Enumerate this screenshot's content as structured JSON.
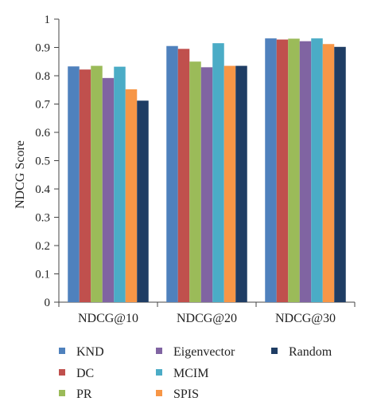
{
  "chart_data": {
    "type": "bar",
    "title": "",
    "xlabel": "",
    "ylabel": "NDCG Score",
    "ylim": [
      0,
      1
    ],
    "yticks": [
      0,
      0.1,
      0.2,
      0.3,
      0.4,
      0.5,
      0.6,
      0.7,
      0.8,
      0.9,
      1
    ],
    "ytick_labels": [
      "0",
      "0.1",
      "0.2",
      "0.3",
      "0.4",
      "0.5",
      "0.6",
      "0.7",
      "0.8",
      "0.9",
      "1"
    ],
    "grid": false,
    "legend_position": "bottom",
    "categories": [
      "NDCG@10",
      "NDCG@20",
      "NDCG@30"
    ],
    "series": [
      {
        "name": "KND",
        "color": "#4f81bd",
        "values": [
          0.833,
          0.905,
          0.932
        ]
      },
      {
        "name": "DC",
        "color": "#c0504d",
        "values": [
          0.822,
          0.895,
          0.928
        ]
      },
      {
        "name": "PR",
        "color": "#9bbb59",
        "values": [
          0.835,
          0.85,
          0.931
        ]
      },
      {
        "name": "Eigenvector",
        "color": "#8064a2",
        "values": [
          0.792,
          0.83,
          0.922
        ]
      },
      {
        "name": "MCIM",
        "color": "#4bacc6",
        "values": [
          0.832,
          0.915,
          0.932
        ]
      },
      {
        "name": "SPIS",
        "color": "#f79646",
        "values": [
          0.752,
          0.835,
          0.912
        ]
      },
      {
        "name": "Random",
        "color": "#1f3d64",
        "values": [
          0.712,
          0.835,
          0.902
        ]
      }
    ]
  }
}
